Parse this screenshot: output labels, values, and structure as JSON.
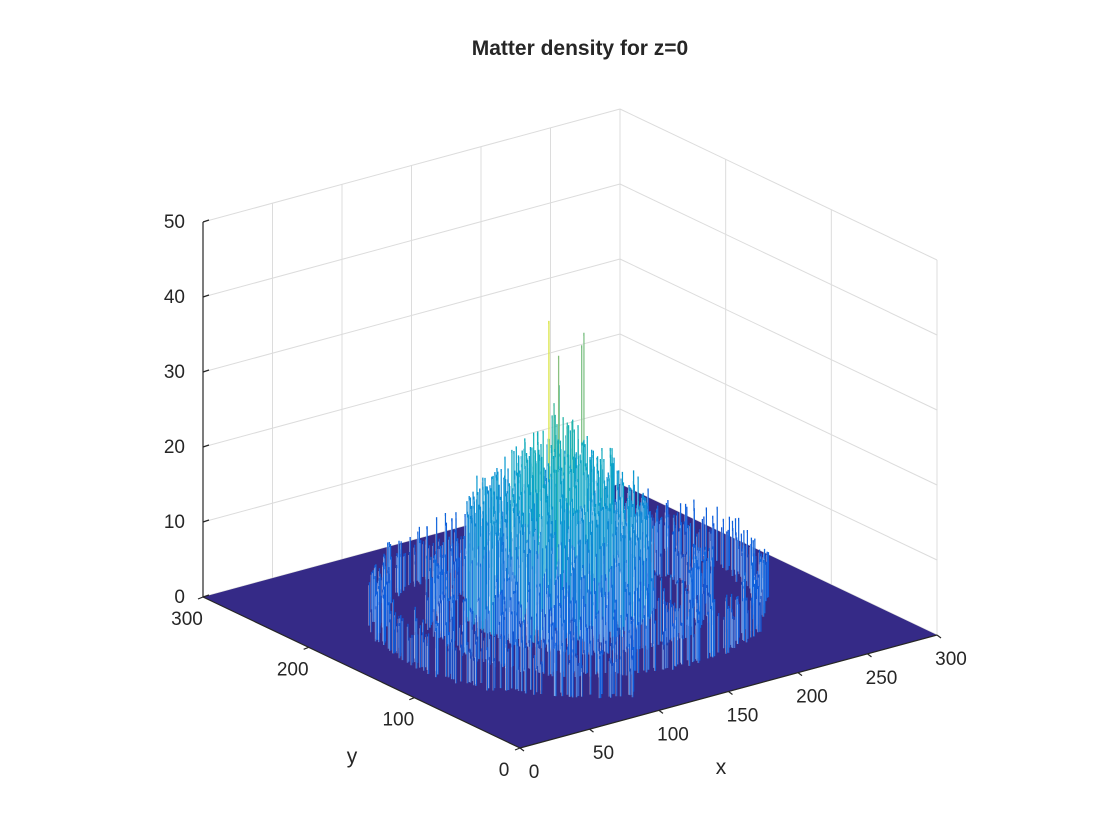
{
  "chart_data": {
    "type": "surface",
    "title": "Matter density for z=0",
    "xlabel": "x",
    "ylabel": "y",
    "zlabel": "",
    "xlim": [
      0,
      300
    ],
    "ylim": [
      0,
      300
    ],
    "zlim": [
      0,
      50
    ],
    "xticks": [
      0,
      50,
      100,
      150,
      200,
      250,
      300
    ],
    "yticks": [
      0,
      100,
      200,
      300
    ],
    "zticks": [
      0,
      10,
      20,
      30,
      40,
      50
    ],
    "grid": true,
    "colormap": "parula",
    "surface_base_color": "#352a87",
    "surface_high_color": "#5fc56e",
    "spiral": {
      "center": [
        150,
        150
      ],
      "arm_radius_range": [
        15,
        130
      ],
      "peak_values": [
        {
          "x": 150,
          "y": 170,
          "z": 38
        },
        {
          "x": 157,
          "y": 170,
          "z": 33
        },
        {
          "x": 185,
          "y": 185,
          "z": 32
        },
        {
          "x": 198,
          "y": 200,
          "z": 32
        },
        {
          "x": 165,
          "y": 180,
          "z": 28
        }
      ],
      "core_typical_value": [
        10,
        25
      ],
      "arm_typical_value": [
        3,
        10
      ]
    }
  }
}
